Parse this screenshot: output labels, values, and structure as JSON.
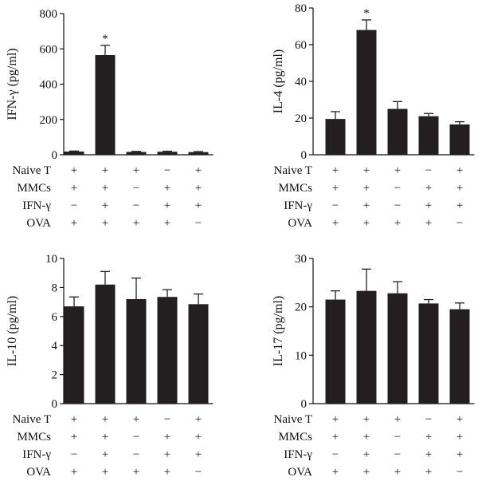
{
  "chart_data": [
    {
      "type": "bar",
      "ylabel": "IFN-γ (pg/ml)",
      "ylim": [
        0,
        800
      ],
      "yticks": [
        "0",
        "200",
        "400",
        "600",
        "800"
      ],
      "values": [
        18,
        565,
        16,
        17,
        15
      ],
      "errors": [
        3,
        55,
        3,
        3,
        3
      ],
      "significance": [
        "",
        "*",
        "",
        "",
        ""
      ]
    },
    {
      "type": "bar",
      "ylabel": "IL-4 (pg/ml)",
      "ylim": [
        0,
        80
      ],
      "yticks": [
        "0",
        "20",
        "40",
        "60",
        "80"
      ],
      "values": [
        19.5,
        68,
        25,
        21,
        16.5
      ],
      "errors": [
        4,
        5.5,
        4,
        1.5,
        1.5
      ],
      "significance": [
        "",
        "*",
        "",
        "",
        ""
      ]
    },
    {
      "type": "bar",
      "ylabel": "IL-10 (pg/ml)",
      "ylim": [
        0,
        10
      ],
      "yticks": [
        "0",
        "2",
        "4",
        "6",
        "8",
        "10"
      ],
      "values": [
        6.7,
        8.2,
        7.2,
        7.35,
        6.85
      ],
      "errors": [
        0.65,
        0.9,
        1.45,
        0.5,
        0.7
      ],
      "significance": [
        "",
        "",
        "",
        "",
        ""
      ]
    },
    {
      "type": "bar",
      "ylabel": "IL-17 (pg/ml)",
      "ylim": [
        0,
        30
      ],
      "yticks": [
        "0",
        "10",
        "20",
        "30"
      ],
      "values": [
        21.5,
        23.3,
        22.8,
        20.7,
        19.5
      ],
      "errors": [
        1.8,
        4.5,
        2.4,
        0.8,
        1.3
      ],
      "significance": [
        "",
        "",
        "",
        "",
        ""
      ]
    }
  ],
  "conditions": [
    {
      "label": "Naive T",
      "signs": [
        "+",
        "+",
        "+",
        "−",
        "+"
      ]
    },
    {
      "label": "MMCs",
      "signs": [
        "+",
        "+",
        "−",
        "+",
        "+"
      ]
    },
    {
      "label": "IFN-γ",
      "signs": [
        "−",
        "+",
        "−",
        "+",
        "+"
      ]
    },
    {
      "label": "OVA",
      "signs": [
        "+",
        "+",
        "+",
        "+",
        "−"
      ]
    }
  ],
  "colors": {
    "bar": "#231f20",
    "axis": "#111111"
  }
}
